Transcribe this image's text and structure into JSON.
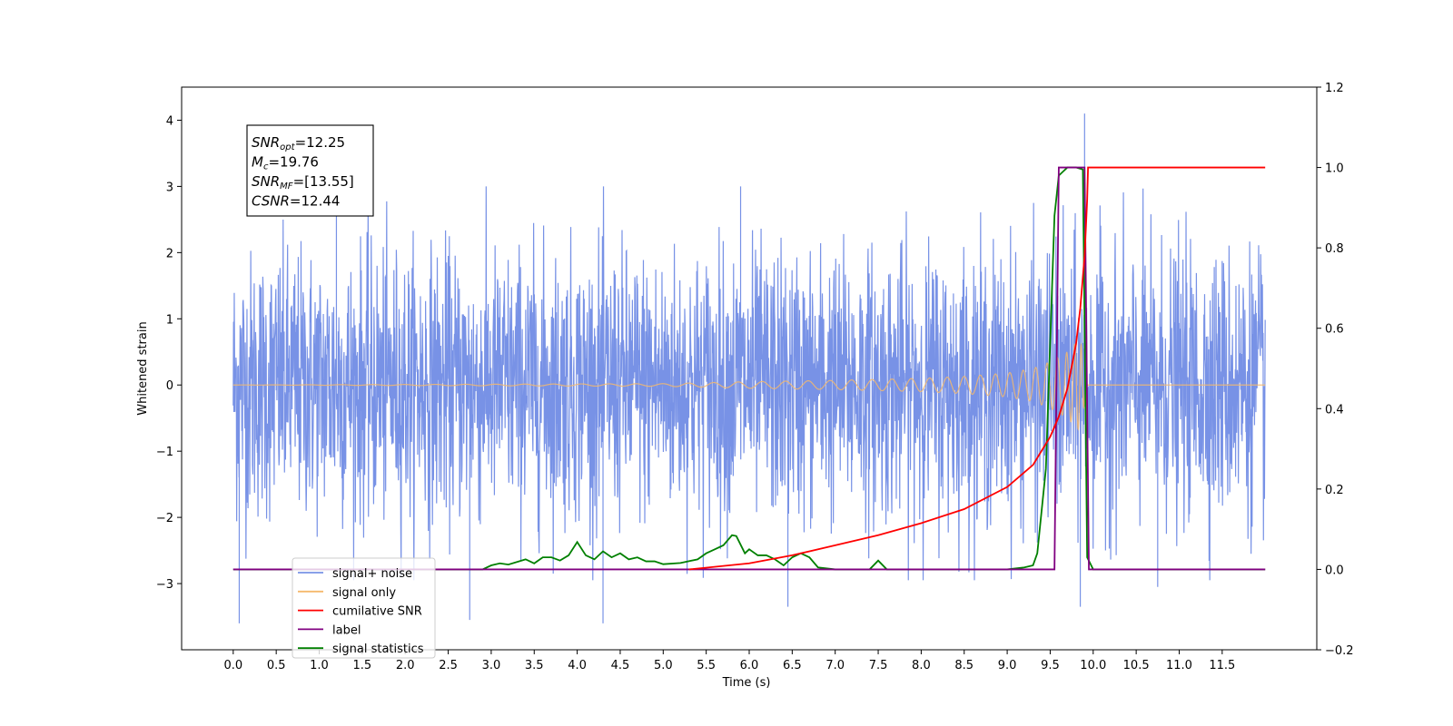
{
  "chart_data": {
    "type": "line",
    "title": "",
    "xlabel": "Time (s)",
    "ylabel": "Whitened strain",
    "xlim": [
      -0.6,
      12.6
    ],
    "ylim": [
      -4.0,
      4.5
    ],
    "y2lim": [
      -0.2,
      1.2
    ],
    "x_ticks": [
      0.0,
      0.5,
      1.0,
      1.5,
      2.0,
      2.5,
      3.0,
      3.5,
      4.0,
      4.5,
      5.0,
      5.5,
      6.0,
      6.5,
      7.0,
      7.5,
      8.0,
      8.5,
      9.0,
      9.5,
      10.0,
      10.5,
      11.0,
      11.5
    ],
    "x_tick_labels": [
      "0.0",
      "0.5",
      "1.0",
      "1.5",
      "2.0",
      "2.5",
      "3.0",
      "3.5",
      "4.0",
      "4.5",
      "5.0",
      "5.5",
      "6.0",
      "6.5",
      "7.0",
      "7.5",
      "8.0",
      "8.5",
      "9.0",
      "9.5",
      "10.0",
      "10.5",
      "11.0",
      "11.5"
    ],
    "y_ticks": [
      -3,
      -2,
      -1,
      0,
      1,
      2,
      3,
      4
    ],
    "y_tick_labels": [
      "−3",
      "−2",
      "−1",
      "0",
      "1",
      "2",
      "3",
      "4"
    ],
    "y2_ticks": [
      -0.2,
      0.0,
      0.2,
      0.4,
      0.6,
      0.8,
      1.0,
      1.2
    ],
    "y2_tick_labels": [
      "−0.2",
      "0.0",
      "0.2",
      "0.4",
      "0.6",
      "0.8",
      "1.0",
      "1.2"
    ],
    "legend_position": "lower-left",
    "grid": false,
    "annotation": [
      {
        "main": "SNR",
        "sub": "opt",
        "value": "=12.25"
      },
      {
        "main": "M",
        "sub": "c",
        "value": "=19.76"
      },
      {
        "main": "SNR",
        "sub": "MF",
        "value": "=[13.55]"
      },
      {
        "main": "CSNR",
        "sub": "",
        "value": "=12.44"
      }
    ],
    "series": [
      {
        "name": "signal+ noise",
        "axis": "left",
        "color": "#7892e6",
        "note": "noise time series, roughly within -2.9..3.0 with spikes to 4.1 near t=9.9 and -3.6 near t=0.07",
        "envelope_peaks": [
          [
            0.07,
            -3.6
          ],
          [
            1.2,
            2.9
          ],
          [
            2.75,
            -3.55
          ],
          [
            4.3,
            -3.6
          ],
          [
            5.9,
            3.0
          ],
          [
            6.45,
            -3.35
          ],
          [
            9.85,
            -3.35
          ],
          [
            9.9,
            4.1
          ],
          [
            10.75,
            -3.05
          ]
        ]
      },
      {
        "name": "signal only",
        "axis": "left",
        "color": "#f5b96c",
        "note": "chirp, amplitude grows until ~9.93 s then zero",
        "x": [
          0.0,
          5.0,
          6.0,
          7.0,
          8.0,
          8.5,
          9.0,
          9.3,
          9.5,
          9.7,
          9.85,
          9.93,
          12.0
        ],
        "amplitude": [
          0.0,
          0.02,
          0.05,
          0.07,
          0.1,
          0.13,
          0.18,
          0.25,
          0.35,
          0.5,
          0.7,
          0.0,
          0.0
        ]
      },
      {
        "name": "cumilative SNR",
        "axis": "right",
        "color": "#ff0000",
        "x": [
          5.3,
          6.0,
          6.5,
          7.0,
          7.5,
          8.0,
          8.5,
          9.0,
          9.3,
          9.5,
          9.6,
          9.7,
          9.8,
          9.85,
          9.9,
          9.93,
          9.94,
          12.0
        ],
        "y": [
          0.0,
          0.015,
          0.035,
          0.06,
          0.085,
          0.115,
          0.15,
          0.205,
          0.26,
          0.33,
          0.38,
          0.45,
          0.56,
          0.65,
          0.78,
          0.92,
          1.0,
          1.0
        ]
      },
      {
        "name": "label",
        "axis": "right",
        "color": "#800080",
        "x": [
          0.0,
          9.55,
          9.6,
          9.9,
          9.95,
          12.0
        ],
        "y": [
          0.0,
          0.0,
          1.0,
          1.0,
          0.0,
          0.0
        ]
      },
      {
        "name": "signal statistics",
        "axis": "right",
        "color": "#008000",
        "x": [
          0.0,
          2.9,
          3.0,
          3.1,
          3.2,
          3.4,
          3.5,
          3.6,
          3.7,
          3.8,
          3.9,
          4.0,
          4.1,
          4.2,
          4.3,
          4.4,
          4.5,
          4.6,
          4.7,
          4.8,
          4.9,
          5.0,
          5.2,
          5.4,
          5.5,
          5.6,
          5.7,
          5.8,
          5.85,
          5.95,
          6.0,
          6.1,
          6.2,
          6.3,
          6.4,
          6.5,
          6.6,
          6.7,
          6.8,
          7.0,
          7.4,
          7.5,
          7.6,
          9.0,
          9.2,
          9.3,
          9.35,
          9.45,
          9.55,
          9.6,
          9.65,
          9.7,
          9.8,
          9.88,
          9.93,
          10.0,
          12.0
        ],
        "y": [
          0.0,
          0.0,
          0.01,
          0.015,
          0.012,
          0.025,
          0.015,
          0.03,
          0.03,
          0.022,
          0.035,
          0.068,
          0.035,
          0.025,
          0.045,
          0.03,
          0.04,
          0.025,
          0.03,
          0.02,
          0.02,
          0.013,
          0.016,
          0.025,
          0.04,
          0.05,
          0.06,
          0.085,
          0.083,
          0.04,
          0.05,
          0.035,
          0.035,
          0.025,
          0.01,
          0.03,
          0.04,
          0.03,
          0.005,
          0.0,
          0.0,
          0.022,
          0.0,
          0.0,
          0.005,
          0.01,
          0.04,
          0.25,
          0.88,
          0.98,
          0.99,
          1.0,
          1.0,
          0.995,
          0.03,
          0.0,
          0.0
        ]
      }
    ]
  },
  "legend_items": [
    {
      "label": "signal+ noise",
      "color": "#7892e6"
    },
    {
      "label": "signal only",
      "color": "#f5b96c"
    },
    {
      "label": "cumilative SNR",
      "color": "#ff0000"
    },
    {
      "label": "label",
      "color": "#800080"
    },
    {
      "label": "signal statistics",
      "color": "#008000"
    }
  ]
}
